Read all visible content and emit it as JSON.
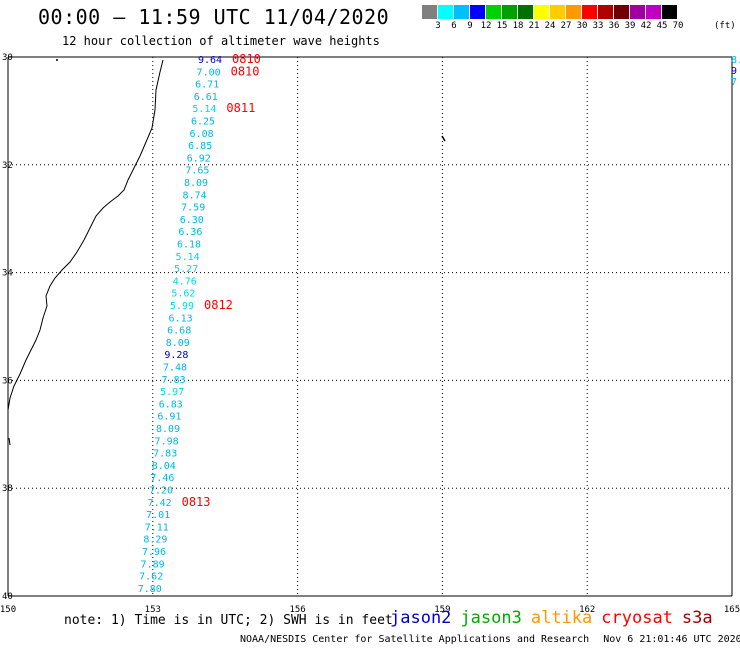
{
  "title": "00:00 – 11:59 UTC 11/04/2020",
  "subtitle": "12 hour collection of altimeter wave heights",
  "scale": {
    "colors": [
      "#808080",
      "#00ffff",
      "#00bfff",
      "#0000ff",
      "#00d200",
      "#00a000",
      "#007000",
      "#ffff00",
      "#ffcc00",
      "#ff9900",
      "#ff0000",
      "#b00000",
      "#700000",
      "#a000a0",
      "#c000c0",
      "#000000"
    ],
    "ticks": [
      "3",
      "6",
      "9",
      "12",
      "15",
      "18",
      "21",
      "24",
      "27",
      "30",
      "33",
      "36",
      "39",
      "42",
      "45",
      "70"
    ],
    "unit": "(ft)"
  },
  "map": {
    "lat_labels": [
      "30",
      "32",
      "34",
      "36",
      "38",
      "40"
    ],
    "lon_labels": [
      "150",
      "153",
      "156",
      "159",
      "162",
      "165"
    ],
    "lat_range": [
      -40,
      -30
    ],
    "lon_range": [
      150,
      165
    ],
    "grid": "dotted"
  },
  "track": {
    "satellite": "jason3",
    "heights": [
      "9.64",
      "7.00",
      "6.71",
      "6.61",
      "5.14",
      "6.25",
      "6.08",
      "6.85",
      "6.92",
      "7.65",
      "8.09",
      "8.74",
      "7.59",
      "6.30",
      "6.36",
      "6.18",
      "5.14",
      "5.27",
      "4.76",
      "5.62",
      "5.99",
      "6.13",
      "6.68",
      "8.09",
      "9.28",
      "7.48",
      "7.83",
      "5.97",
      "6.83",
      "6.91",
      "8.09",
      "7.98",
      "7.83",
      "8.04",
      "7.46",
      "7.20",
      "7.42",
      "7.01",
      "7.11",
      "8.29",
      "7.96",
      "7.89",
      "7.62",
      "7.80"
    ],
    "times": [
      {
        "label": "0810",
        "row": 0
      },
      {
        "label": "0810",
        "row": 1
      },
      {
        "label": "0811",
        "row": 4
      },
      {
        "label": "0812",
        "row": 20
      },
      {
        "label": "0813",
        "row": 36
      }
    ],
    "edge_values": [
      "8.",
      "9",
      "7"
    ]
  },
  "note": "note:  1) Time is in UTC;  2) SWH is in feet",
  "legend": [
    {
      "name": "jason2",
      "color": "#0000cc"
    },
    {
      "name": "jason3",
      "color": "#00aa00"
    },
    {
      "name": "altika",
      "color": "#ff9900"
    },
    {
      "name": "cryosat",
      "color": "#ff0000"
    },
    {
      "name": "s3a",
      "color": "#aa0000"
    }
  ],
  "credit": {
    "org": "NOAA/NESDIS Center for Satellite Applications and Research",
    "stamp": "Nov  6 21:01:46 UTC 2020"
  }
}
